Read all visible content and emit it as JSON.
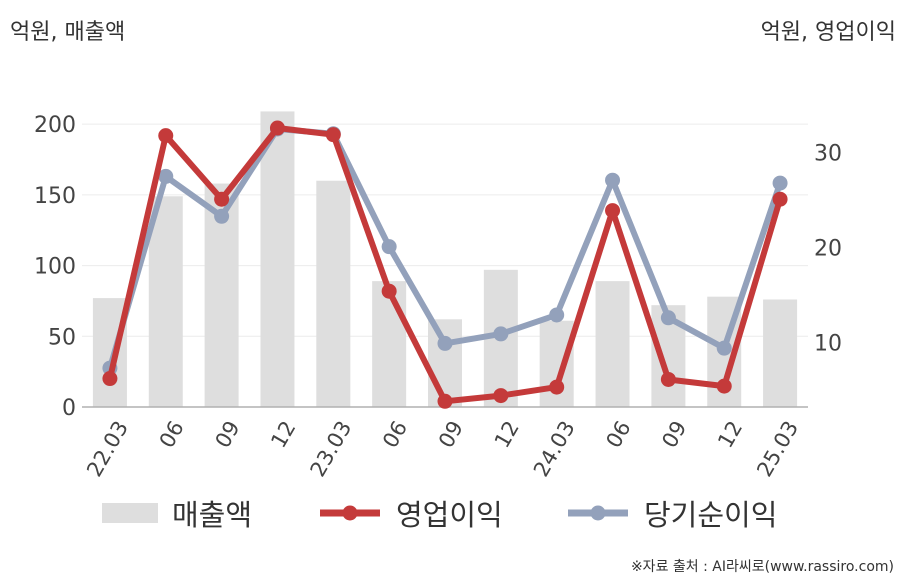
{
  "units": {
    "left": "억원, 매출액",
    "right": "억원, 영업이익"
  },
  "source": "※자료 출처 : AI라씨로(www.rassiro.com)",
  "legend": [
    "매출액",
    "영업이익",
    "당기순이익"
  ],
  "colors": {
    "revenue": "#dedede",
    "operating": "#c43a3a",
    "net": "#93a1bb",
    "axis": "#b0b0b0",
    "grid": "#ececec",
    "text": "#444444"
  },
  "chart_data": {
    "type": "bar+line",
    "categories": [
      "22.03",
      "06",
      "09",
      "12",
      "23.03",
      "06",
      "09",
      "12",
      "24.03",
      "06",
      "09",
      "12",
      "25.03"
    ],
    "left_axis": {
      "ticks": [
        0,
        50,
        100,
        150,
        200
      ],
      "ylim": [
        0,
        210
      ]
    },
    "right_axis": {
      "ticks": [
        10,
        20,
        30
      ],
      "ylim": [
        3.2,
        34.5
      ]
    },
    "series": [
      {
        "name": "매출액",
        "type": "bar",
        "axis": "left",
        "values": [
          77,
          149,
          158,
          209,
          160,
          89,
          62,
          97,
          61,
          89,
          72,
          78,
          76
        ]
      },
      {
        "name": "영업이익",
        "type": "line",
        "axis": "right",
        "values": [
          6.2,
          31.8,
          25.1,
          32.6,
          31.9,
          15.4,
          3.8,
          4.4,
          5.3,
          23.9,
          6.1,
          5.4,
          25.1
        ]
      },
      {
        "name": "당기순이익",
        "type": "line",
        "axis": "right",
        "values": [
          7.3,
          27.5,
          23.3,
          32.5,
          32.0,
          20.1,
          9.9,
          10.9,
          12.9,
          27.1,
          12.6,
          9.4,
          26.8
        ]
      }
    ],
    "grid": true,
    "legend_position": "bottom"
  }
}
